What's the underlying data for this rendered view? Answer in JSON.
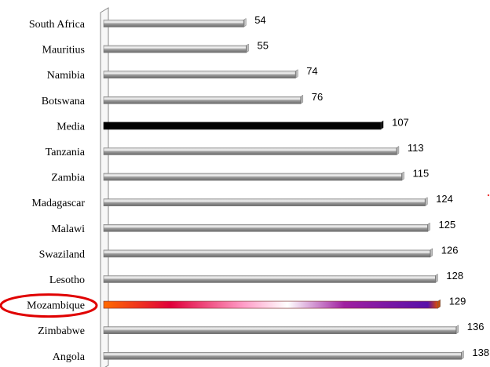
{
  "chart_data": {
    "type": "bar",
    "orientation": "horizontal",
    "categories": [
      "South Africa",
      "Mauritius",
      "Namibia",
      "Botswana",
      "Media",
      "Tanzania",
      "Zambia",
      "Madagascar",
      "Malawi",
      "Swaziland",
      "Lesotho",
      "Mozambique",
      "Zimbabwe",
      "Angola"
    ],
    "values": [
      54,
      55,
      74,
      76,
      107,
      113,
      115,
      124,
      125,
      126,
      128,
      129,
      136,
      138
    ],
    "value_labels": [
      "54",
      "55",
      "74",
      "76",
      "107",
      "113",
      "115",
      "124",
      "125",
      "126",
      "128",
      "129",
      "136",
      "138"
    ],
    "xlim": [
      0,
      140
    ],
    "grid": false,
    "legend": "none",
    "highlight": {
      "category": "Mozambique",
      "annotation": "red-ellipse-around-label",
      "fill": "gradient-orange-red-white-purple"
    },
    "special_fill": {
      "Media": "black"
    },
    "colors": {
      "bar": "#a6a6a6",
      "bar_light": "#f2f2f2",
      "bar_dark": "#6f6f6f",
      "media_bar": "#000000",
      "highlight_ellipse": "#e00000",
      "gradient": [
        "#ff6a00",
        "#e0003a",
        "#ff9ec8",
        "#ffffff",
        "#a020a0",
        "#5a0fa8",
        "#e05000"
      ]
    }
  }
}
